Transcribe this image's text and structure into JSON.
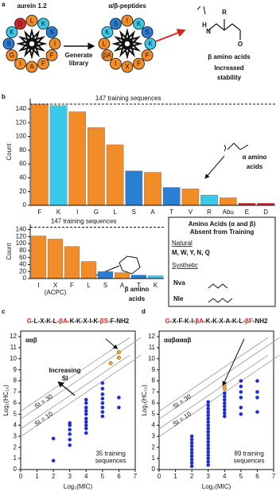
{
  "panel_labels": [
    "a",
    "b",
    "c",
    "d"
  ],
  "panel_a": {
    "left_title": "aurein 1.2",
    "right_title": "α/β-peptides",
    "arrow_label": [
      "Generate",
      "library"
    ],
    "left_residues": [
      "L",
      "K",
      "S",
      "I",
      "F",
      "F",
      "A",
      "I",
      "G",
      "S",
      "K",
      "D"
    ],
    "left_colors": [
      "#f28c28",
      "#3cc8e8",
      "#2a7fd4",
      "#f28c28",
      "#f28c28",
      "#f28c28",
      "#f28c28",
      "#f28c28",
      "#f28c28",
      "#2a7fd4",
      "#3cc8e8",
      "#d9262c"
    ],
    "right_residues": [
      "I",
      "K",
      "S",
      "K",
      "F",
      "F",
      "X",
      "I",
      "βA",
      "L",
      "K",
      "S"
    ],
    "right_colors": [
      "#f28c28",
      "#3cc8e8",
      "#2a7fd4",
      "#3cc8e8",
      "#f28c28",
      "#f28c28",
      "#f28c28",
      "#f28c28",
      "#f28c28",
      "#f28c28",
      "#3cc8e8",
      "#2a7fd4"
    ],
    "structure_atoms": [
      "R",
      "H",
      "N",
      "O"
    ],
    "beta_label": "β amino acids",
    "stability_label": [
      "Increased",
      "stability"
    ]
  },
  "chart_data": [
    {
      "type": "bar",
      "y_label": "Count",
      "categories": [
        "F",
        "K",
        "I",
        "G",
        "L",
        "S",
        "A",
        "T",
        "V",
        "R",
        "Abu",
        "E",
        "D"
      ],
      "values": [
        147,
        145,
        136,
        113,
        88,
        50,
        48,
        26,
        24,
        15,
        11,
        3,
        3
      ],
      "colors": [
        "#f28c28",
        "#3cc8e8",
        "#f28c28",
        "#f28c28",
        "#f28c28",
        "#2a7fd4",
        "#f28c28",
        "#2a7fd4",
        "#f28c28",
        "#3cc8e8",
        "#f28c28",
        "#d9262c",
        "#d9262c"
      ],
      "ylim": [
        0,
        155
      ],
      "yticks": [
        0,
        20,
        40,
        60,
        80,
        100,
        120,
        140
      ],
      "reference_line": {
        "value": 147,
        "label": "147 training sequences"
      },
      "annotation": [
        "α amino",
        "acids"
      ],
      "annotation_color": "#e02020"
    },
    {
      "type": "bar",
      "y_label": "Count",
      "categories": [
        "I",
        "X",
        "F",
        "L",
        "S",
        "A",
        "T",
        "K"
      ],
      "category_notes": [
        null,
        "(ACPC)",
        null,
        null,
        null,
        null,
        null,
        null
      ],
      "values": [
        122,
        113,
        92,
        49,
        20,
        17,
        10,
        8
      ],
      "colors": [
        "#f28c28",
        "#f28c28",
        "#f28c28",
        "#f28c28",
        "#2a7fd4",
        "#f28c28",
        "#2a7fd4",
        "#3cc8e8"
      ],
      "ylim": [
        0,
        155
      ],
      "yticks": [
        0,
        20,
        40,
        60,
        80,
        100,
        120,
        140
      ],
      "reference_line": {
        "value": 147,
        "label": "147 training sequences"
      },
      "annotation": [
        "β amino",
        "acids"
      ],
      "annotation_color": "#e02020"
    },
    {
      "type": "scatter",
      "subtitle": "ααβ",
      "x_label": "Log₂(MIC)",
      "y_label": "Log₂(HC₁₀)",
      "sequence": [
        {
          "text": "G",
          "color": "#e02020"
        },
        {
          "text": "-L-X-K-L-"
        },
        {
          "text": "βA",
          "color": "#e02020"
        },
        {
          "text": "-K-K-X-I-K-"
        },
        {
          "text": "βS",
          "color": "#e02020"
        },
        {
          "text": "-F-NH2"
        }
      ],
      "xlim": [
        0,
        7
      ],
      "ylim": [
        0,
        12.5
      ],
      "xticks": [
        0,
        1,
        2,
        3,
        4,
        5,
        6,
        7
      ],
      "yticks": [
        0,
        1,
        2,
        3,
        4,
        5,
        6,
        7,
        8,
        9,
        10,
        11,
        12
      ],
      "si_lines": [
        {
          "value": 30,
          "label": "SI = 30"
        },
        {
          "value": 10,
          "label": "SI = 10"
        }
      ],
      "annotation": [
        "Increasing",
        "SI"
      ],
      "note": [
        "35 training",
        "sequences"
      ],
      "series": [
        {
          "color": "#1f2fd6",
          "x": [
            2,
            2,
            3,
            3,
            3,
            3,
            3,
            3,
            4,
            4,
            4,
            4,
            4,
            4,
            4,
            4,
            4,
            4,
            5,
            5,
            5,
            5,
            5,
            5,
            5,
            5,
            6,
            6
          ],
          "y": [
            0.8,
            2.8,
            2.2,
            2.7,
            3.2,
            3.6,
            4.0,
            4.2,
            3.3,
            3.7,
            4.0,
            4.3,
            4.6,
            5.0,
            5.3,
            5.6,
            6.0,
            6.3,
            4.8,
            5.2,
            5.6,
            6.0,
            6.4,
            6.8,
            7.3,
            7.8,
            5.6,
            6.5
          ]
        },
        {
          "color": "#f2a93b",
          "x": [
            6,
            6,
            5.5
          ],
          "y": [
            10.6,
            10.1,
            9.6
          ]
        }
      ]
    },
    {
      "type": "scatter",
      "subtitle": "ααβαααβ",
      "x_label": "Log₂(MIC)",
      "y_label": "Log₂(HC₁₀)",
      "sequence": [
        {
          "text": "G",
          "color": "#e02020"
        },
        {
          "text": "-X-F-K-I-"
        },
        {
          "text": "βA",
          "color": "#e02020"
        },
        {
          "text": "-K-K-X-A-K-L-"
        },
        {
          "text": "βF",
          "color": "#e02020"
        },
        {
          "text": "-NH2"
        }
      ],
      "xlim": [
        0,
        7
      ],
      "ylim": [
        0,
        12.5
      ],
      "xticks": [
        0,
        1,
        2,
        3,
        4,
        5,
        6,
        7
      ],
      "yticks": [
        0,
        1,
        2,
        3,
        4,
        5,
        6,
        7,
        8,
        9,
        10,
        11,
        12
      ],
      "si_lines": [
        {
          "value": 30,
          "label": "SI = 30"
        },
        {
          "value": 10,
          "label": "SI = 10"
        }
      ],
      "note": [
        "89 training",
        "sequences"
      ],
      "series": [
        {
          "color": "#1f2fd6",
          "x": [
            2,
            2,
            2,
            2,
            2,
            2,
            2,
            2,
            2,
            2,
            3,
            3,
            3,
            3,
            3,
            3,
            3,
            3,
            3,
            3,
            3,
            3,
            3,
            3,
            3,
            3,
            3,
            3,
            3,
            3,
            4,
            4,
            4,
            4,
            4,
            4,
            4,
            4,
            5,
            5,
            5,
            5,
            5,
            5,
            6,
            6,
            6,
            6
          ],
          "y": [
            0.3,
            0.6,
            0.9,
            1.2,
            1.5,
            1.8,
            2.1,
            2.4,
            2.7,
            3.0,
            0.4,
            0.7,
            1.0,
            1.3,
            1.6,
            1.9,
            2.2,
            2.5,
            2.8,
            3.1,
            3.4,
            3.7,
            4.0,
            4.3,
            4.6,
            4.9,
            5.2,
            5.5,
            5.8,
            6.1,
            4.8,
            5.1,
            5.4,
            5.7,
            6.0,
            6.3,
            6.6,
            6.9,
            5.0,
            5.6,
            6.5,
            7.0,
            7.5,
            8.0,
            5.2,
            6.5,
            7.0,
            8.0
          ]
        },
        {
          "color": "#f2a93b",
          "x": [
            4,
            4
          ],
          "y": [
            7.3,
            7.6
          ]
        }
      ]
    }
  ],
  "legend_box": {
    "title": [
      "Amino Acids (α and β)",
      "Absent from Training"
    ],
    "natural_heading": "Natural",
    "natural": "M, W, Y, N, Q",
    "synthetic_heading": "Synthetic",
    "synthetic": [
      "Nva",
      "Nle"
    ]
  }
}
